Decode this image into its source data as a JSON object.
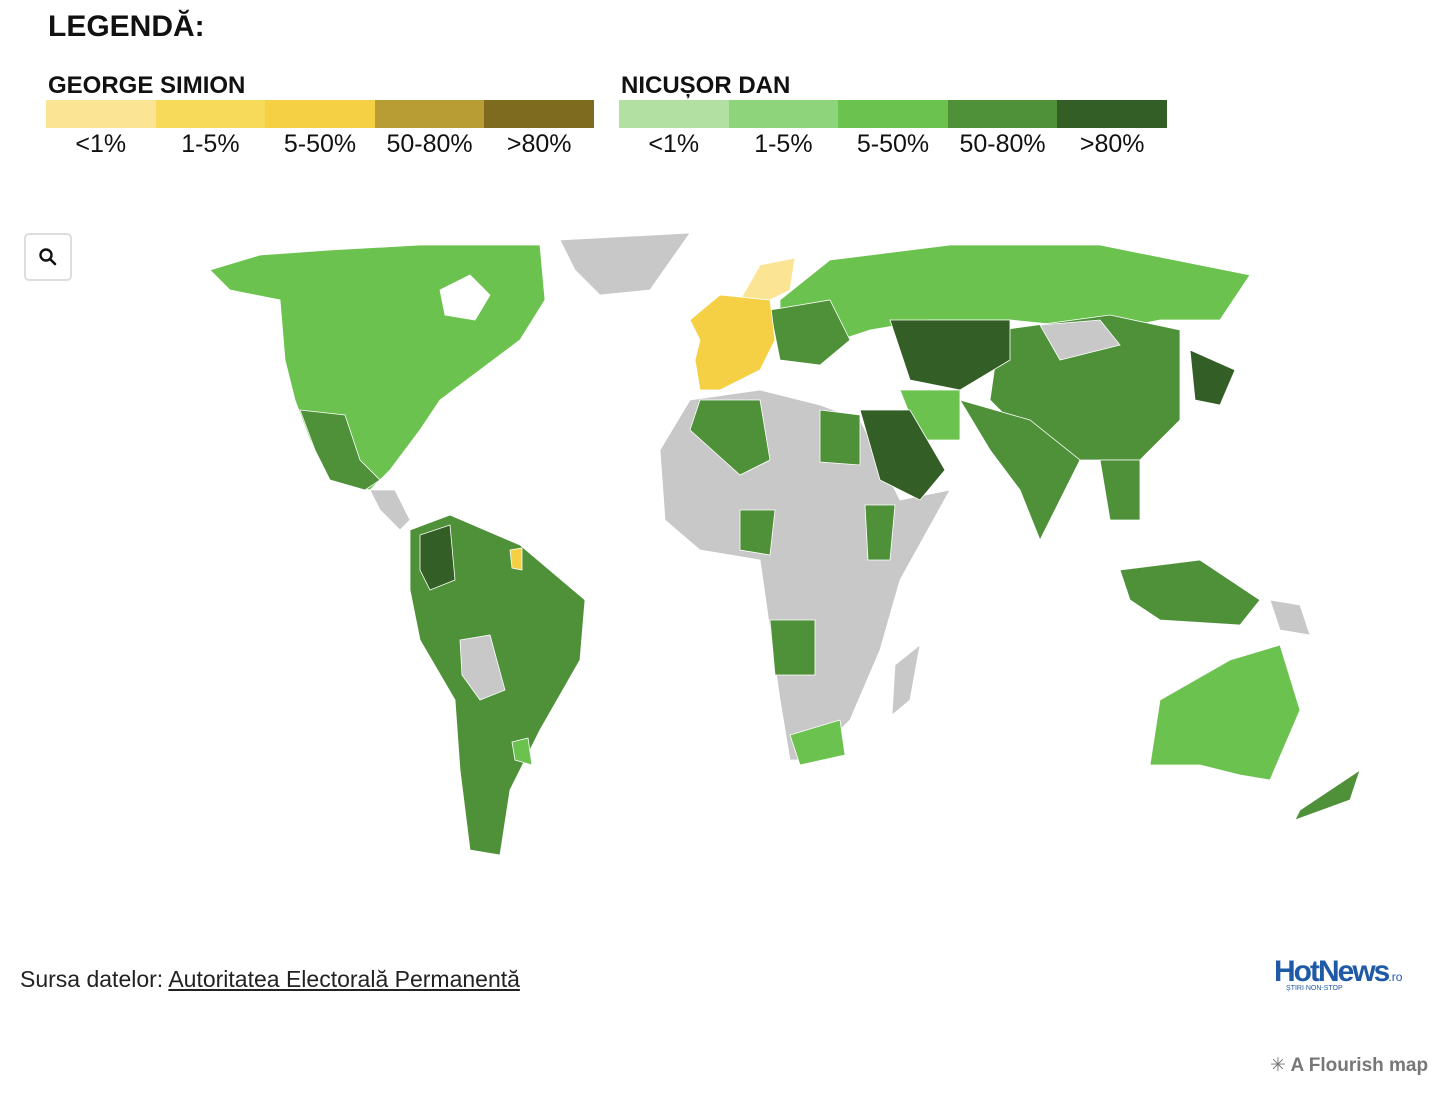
{
  "legend": {
    "title": "LEGENDĂ:",
    "groups": [
      {
        "name": "GEORGE SIMION",
        "items": [
          {
            "label": "<1%",
            "color": "#fbe594"
          },
          {
            "label": "1-5%",
            "color": "#f8da5a"
          },
          {
            "label": "5-50%",
            "color": "#f6d044"
          },
          {
            "label": "50-80%",
            "color": "#b89c34"
          },
          {
            "label": ">80%",
            "color": "#7e6b20"
          }
        ]
      },
      {
        "name": "NICUȘOR DAN",
        "items": [
          {
            "label": "<1%",
            "color": "#b2e0a2"
          },
          {
            "label": "1-5%",
            "color": "#8ed47a"
          },
          {
            "label": "5-50%",
            "color": "#6cc24f"
          },
          {
            "label": "50-80%",
            "color": "#4e9139"
          },
          {
            "label": ">80%",
            "color": "#335f26"
          }
        ]
      }
    ]
  },
  "footer": {
    "source_prefix": "Sursa datelor:",
    "source_link": "Autoritatea Electorală Permanentă",
    "logo": "HotNews",
    "logo_suffix": ".ro",
    "logo_tagline": "ȘTIRI NON-STOP",
    "credit": "A Flourish map"
  }
}
